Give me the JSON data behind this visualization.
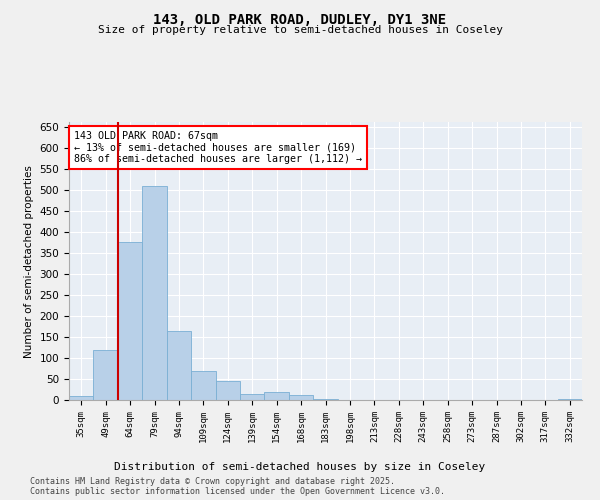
{
  "title_line1": "143, OLD PARK ROAD, DUDLEY, DY1 3NE",
  "title_line2": "Size of property relative to semi-detached houses in Coseley",
  "xlabel": "Distribution of semi-detached houses by size in Coseley",
  "ylabel": "Number of semi-detached properties",
  "footer_line1": "Contains HM Land Registry data © Crown copyright and database right 2025.",
  "footer_line2": "Contains public sector information licensed under the Open Government Licence v3.0.",
  "annotation_line1": "143 OLD PARK ROAD: 67sqm",
  "annotation_line2": "← 13% of semi-detached houses are smaller (169)",
  "annotation_line3": "86% of semi-detached houses are larger (1,112) →",
  "property_size_bin": 1.5,
  "bar_color": "#b8d0e8",
  "bar_edge_color": "#7aafd4",
  "redline_color": "#cc0000",
  "background_color": "#e8eef5",
  "grid_color": "#ffffff",
  "bin_labels": [
    "35sqm",
    "49sqm",
    "64sqm",
    "79sqm",
    "94sqm",
    "109sqm",
    "124sqm",
    "139sqm",
    "154sqm",
    "168sqm",
    "183sqm",
    "198sqm",
    "213sqm",
    "228sqm",
    "243sqm",
    "258sqm",
    "273sqm",
    "287sqm",
    "302sqm",
    "317sqm",
    "332sqm"
  ],
  "counts": [
    10,
    120,
    375,
    510,
    165,
    70,
    45,
    15,
    20,
    12,
    3,
    0,
    0,
    0,
    0,
    0,
    0,
    0,
    0,
    0,
    2
  ],
  "ylim": [
    0,
    660
  ],
  "yticks": [
    0,
    50,
    100,
    150,
    200,
    250,
    300,
    350,
    400,
    450,
    500,
    550,
    600,
    650
  ],
  "redline_x": 1.5,
  "fig_bg": "#f0f0f0"
}
